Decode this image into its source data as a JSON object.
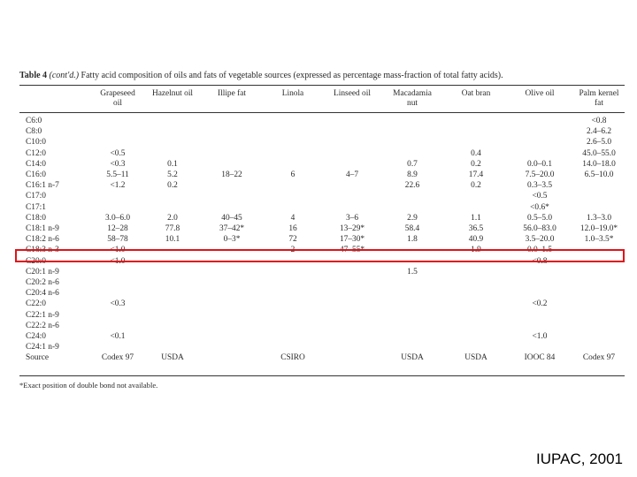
{
  "caption": {
    "label": "Table 4",
    "cont": "(cont'd.)",
    "text": "Fatty acid composition of oils and fats of vegetable sources (expressed as percentage mass-fraction of total fatty acids)."
  },
  "columns": [
    [
      "Grapeseed",
      "oil"
    ],
    [
      "Hazelnut oil"
    ],
    [
      "Illipe fat"
    ],
    [
      "Linola"
    ],
    [
      "Linseed oil"
    ],
    [
      "Macadamia",
      "nut"
    ],
    [
      "Oat bran"
    ],
    [
      "Olive oil"
    ],
    [
      "Palm kernel",
      "fat"
    ]
  ],
  "rows": [
    {
      "label": "C6:0",
      "cells": [
        "",
        "",
        "",
        "",
        "",
        "",
        "",
        "",
        "<0.8"
      ]
    },
    {
      "label": "C8:0",
      "cells": [
        "",
        "",
        "",
        "",
        "",
        "",
        "",
        "",
        "2.4–6.2"
      ]
    },
    {
      "label": "C10:0",
      "cells": [
        "",
        "",
        "",
        "",
        "",
        "",
        "",
        "",
        "2.6–5.0"
      ]
    },
    {
      "label": "C12:0",
      "cells": [
        "<0.5",
        "",
        "",
        "",
        "",
        "",
        "0.4",
        "",
        "45.0–55.0"
      ]
    },
    {
      "label": "C14:0",
      "cells": [
        "<0.3",
        "0.1",
        "",
        "",
        "",
        "0.7",
        "0.2",
        "0.0–0.1",
        "14.0–18.0"
      ]
    },
    {
      "label": "C16:0",
      "cells": [
        "5.5–11",
        "5.2",
        "18–22",
        "6",
        "4–7",
        "8.9",
        "17.4",
        "7.5–20.0",
        "6.5–10.0"
      ]
    },
    {
      "label": "C16:1 n-7",
      "cells": [
        "<1.2",
        "0.2",
        "",
        "",
        "",
        "22.6",
        "0.2",
        "0.3–3.5",
        ""
      ]
    },
    {
      "label": "C17:0",
      "cells": [
        "",
        "",
        "",
        "",
        "",
        "",
        "",
        "<0.5",
        ""
      ]
    },
    {
      "label": "C17:1",
      "cells": [
        "",
        "",
        "",
        "",
        "",
        "",
        "",
        "<0.6*",
        ""
      ]
    },
    {
      "label": "C18:0",
      "cells": [
        "3.0–6.0",
        "2.0",
        "40–45",
        "4",
        "3–6",
        "2.9",
        "1.1",
        "0.5–5.0",
        "1.3–3.0"
      ]
    },
    {
      "label": "C18:1 n-9",
      "cells": [
        "12–28",
        "77.8",
        "37–42*",
        "16",
        "13–29*",
        "58.4",
        "36.5",
        "56.0–83.0",
        "12.0–19.0*"
      ]
    },
    {
      "label": "C18:2 n-6",
      "cells": [
        "58–78",
        "10.1",
        "0–3*",
        "72",
        "17–30*",
        "1.8",
        "40.9",
        "3.5–20.0",
        "1.0–3.5*"
      ]
    },
    {
      "label": "C18:3 n-3",
      "cells": [
        "<1.0",
        "",
        "",
        "2",
        "47–55*",
        "",
        "1.9",
        "0.0–1.5",
        ""
      ]
    },
    {
      "label": "C20:0",
      "cells": [
        "<1.0",
        "",
        "",
        "",
        "",
        "",
        "",
        "<0.8",
        ""
      ]
    },
    {
      "label": "C20:1 n-9",
      "cells": [
        "",
        "",
        "",
        "",
        "",
        "1.5",
        "",
        "",
        ""
      ]
    },
    {
      "label": "C20:2 n-6",
      "cells": [
        "",
        "",
        "",
        "",
        "",
        "",
        "",
        "",
        ""
      ]
    },
    {
      "label": "C20:4 n-6",
      "cells": [
        "",
        "",
        "",
        "",
        "",
        "",
        "",
        "",
        ""
      ]
    },
    {
      "label": "C22:0",
      "cells": [
        "<0.3",
        "",
        "",
        "",
        "",
        "",
        "",
        "<0.2",
        ""
      ]
    },
    {
      "label": "C22:1 n-9",
      "cells": [
        "",
        "",
        "",
        "",
        "",
        "",
        "",
        "",
        ""
      ]
    },
    {
      "label": "C22:2 n-6",
      "cells": [
        "",
        "",
        "",
        "",
        "",
        "",
        "",
        "",
        ""
      ]
    },
    {
      "label": "C24:0",
      "cells": [
        "<0.1",
        "",
        "",
        "",
        "",
        "",
        "",
        "<1.0",
        ""
      ]
    },
    {
      "label": "C24:1 n-9",
      "cells": [
        "",
        "",
        "",
        "",
        "",
        "",
        "",
        "",
        ""
      ]
    },
    {
      "label": "Source",
      "cells": [
        "Codex 97",
        "USDA",
        "",
        "CSIRO",
        "",
        "USDA",
        "USDA",
        "IOOC 84",
        "Codex 97"
      ]
    }
  ],
  "footnote": "*Exact position of double bond not available.",
  "credit": "IUPAC, 2001",
  "highlight_color": "#e0141a"
}
